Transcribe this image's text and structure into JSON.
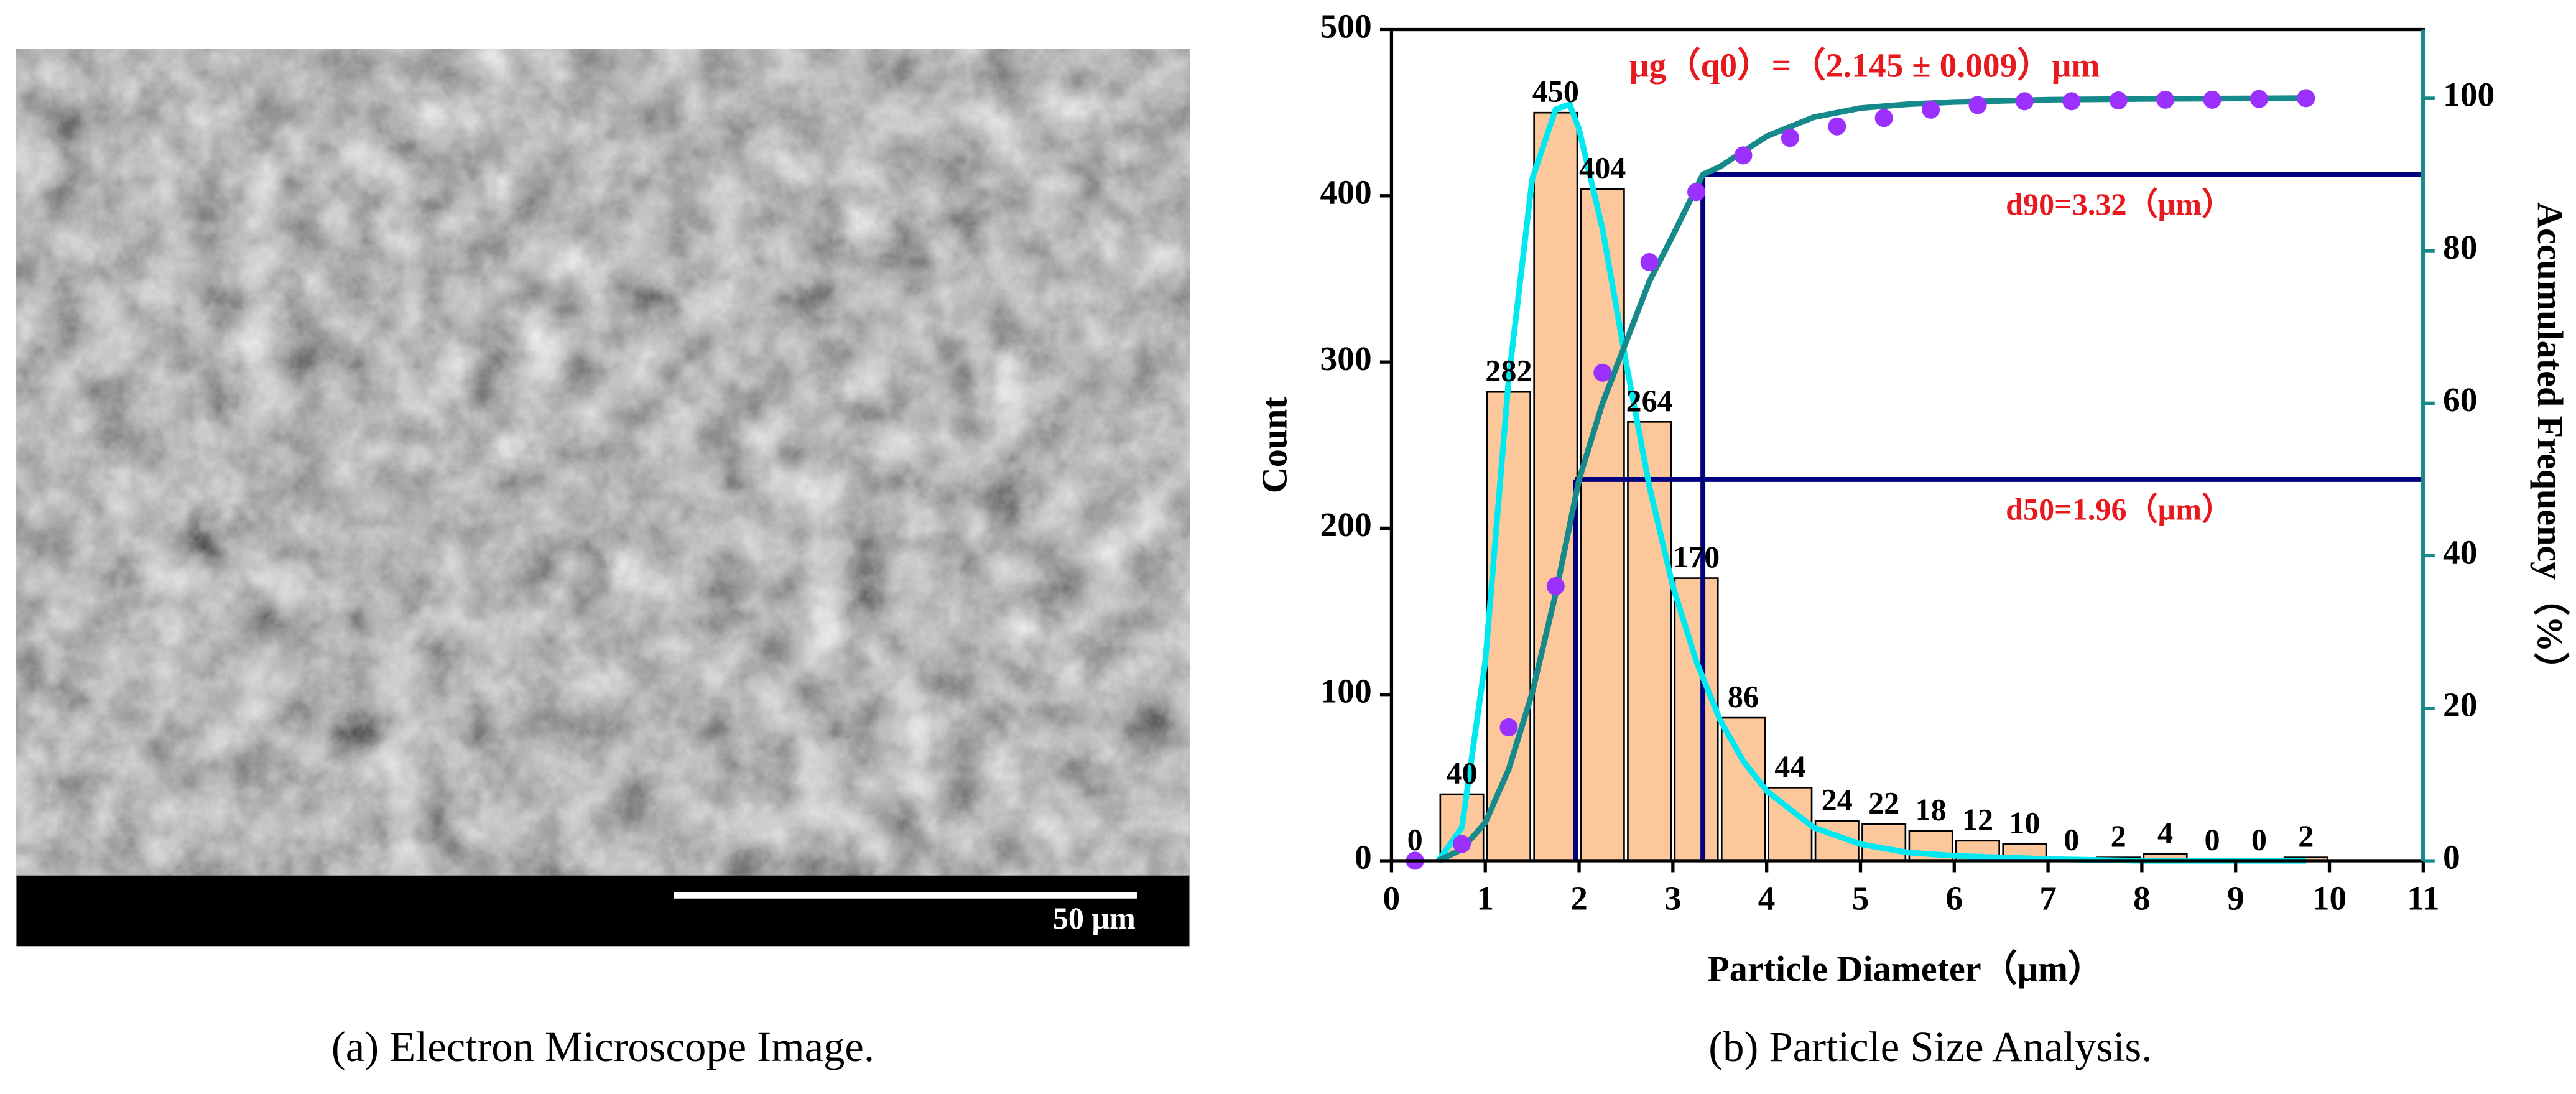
{
  "image_panel": {
    "scale_bar_label": "50 μm",
    "caption": "(a) Electron Microscope Image."
  },
  "chart_caption": "(b) Particle Size Analysis.",
  "chart_data": {
    "type": "histogram",
    "xlabel": "Particle Diameter（μm）",
    "ylabel": "Count",
    "y2label": "Accumulated Frequency（%）",
    "annotation": "μg（q0）=（2.145 ± 0.009）μm",
    "bins": [
      0,
      0.5,
      1,
      1.5,
      2,
      2.5,
      3,
      3.5,
      4,
      4.5,
      5,
      5.5,
      6,
      6.5,
      7,
      7.5,
      8,
      8.5,
      9,
      9.5,
      10
    ],
    "values": [
      0,
      40,
      282,
      450,
      404,
      264,
      170,
      86,
      44,
      24,
      22,
      18,
      12,
      10,
      0,
      2,
      4,
      0,
      0,
      2
    ],
    "color": "#fcc89b",
    "xlim": [
      0,
      11
    ],
    "xticks": [
      0,
      1,
      2,
      3,
      4,
      5,
      6,
      7,
      8,
      9,
      10,
      11
    ],
    "ylim": [
      0,
      500
    ],
    "yticks": [
      0,
      100,
      200,
      300,
      400,
      500
    ],
    "y2lim": [
      0,
      109
    ],
    "y2ticks": [
      0,
      20,
      40,
      60,
      80,
      100
    ],
    "series": [
      {
        "type": "line",
        "color": "#00e8f0",
        "x": [
          0.5,
          0.75,
          1,
          1.25,
          1.5,
          1.75,
          1.9,
          2,
          2.25,
          2.5,
          2.75,
          3,
          3.25,
          3.5,
          3.75,
          4,
          4.5,
          5,
          5.5,
          6,
          7,
          8,
          9.75
        ],
        "values": [
          0,
          20,
          120,
          290,
          410,
          452,
          455,
          440,
          380,
          300,
          225,
          165,
          120,
          85,
          60,
          42,
          20,
          10,
          5,
          3,
          1,
          0,
          0
        ]
      },
      {
        "type": "line",
        "color": "#168a8a",
        "axis": "y2",
        "x": [
          0.5,
          0.75,
          1,
          1.25,
          1.5,
          1.75,
          2,
          2.25,
          2.5,
          2.75,
          3,
          3.32,
          3.5,
          4,
          4.5,
          5,
          5.5,
          6,
          7,
          8,
          9.75
        ],
        "values": [
          0,
          1.5,
          5,
          12,
          22,
          35,
          50,
          60,
          68,
          76,
          82,
          90,
          91,
          95,
          97.5,
          98.7,
          99.2,
          99.5,
          99.8,
          99.9,
          100
        ]
      },
      {
        "type": "scatter",
        "color": "#9b30ff",
        "axis": "y2",
        "x": [
          0.25,
          0.75,
          1.25,
          1.75,
          2.25,
          2.75,
          3.25,
          3.75,
          4.25,
          4.75,
          5.25,
          5.75,
          6.25,
          6.75,
          7.25,
          7.75,
          8.25,
          8.75,
          9.25,
          9.75
        ],
        "values": [
          0,
          2.2,
          17.5,
          36,
          64,
          78.5,
          87.7,
          92.5,
          94.8,
          96.3,
          97.4,
          98.5,
          99.1,
          99.6,
          99.6,
          99.7,
          99.8,
          99.8,
          99.9,
          100
        ]
      }
    ],
    "reference_lines": [
      {
        "x": 3.32,
        "y": 90,
        "label": "d90=3.32（μm）",
        "color": "#000080",
        "axis": "y2"
      },
      {
        "x": 1.96,
        "y": 50,
        "label": "d50=1.96（μm）",
        "color": "#000080",
        "axis": "y2"
      }
    ]
  }
}
